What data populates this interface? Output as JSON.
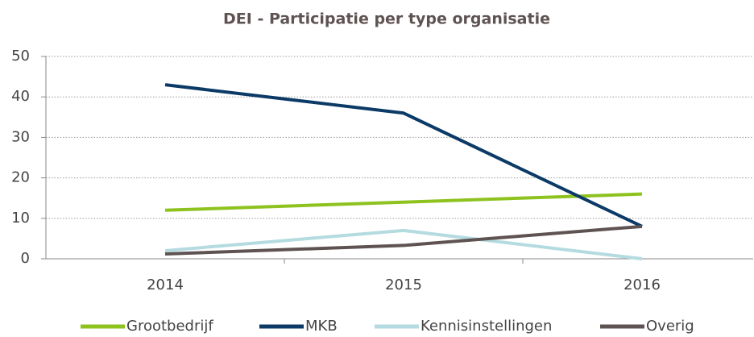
{
  "chart_data": {
    "type": "line",
    "title": "DEI - Participatie per type organisatie",
    "categories": [
      "2014",
      "2015",
      "2016"
    ],
    "series": [
      {
        "name": "Grootbedrijf",
        "color": "#8dc21f",
        "values": [
          12,
          14,
          16
        ]
      },
      {
        "name": "MKB",
        "color": "#0b3a66",
        "values": [
          43,
          36,
          8
        ]
      },
      {
        "name": "Kennisinstellingen",
        "color": "#b4dbe0",
        "values": [
          2,
          7,
          0
        ]
      },
      {
        "name": "Overig",
        "color": "#5e5352",
        "values": [
          1.2,
          3.3,
          8
        ]
      }
    ],
    "ylim": [
      0,
      50
    ],
    "yticks": [
      0,
      10,
      20,
      30,
      40,
      50
    ],
    "grid": true
  }
}
